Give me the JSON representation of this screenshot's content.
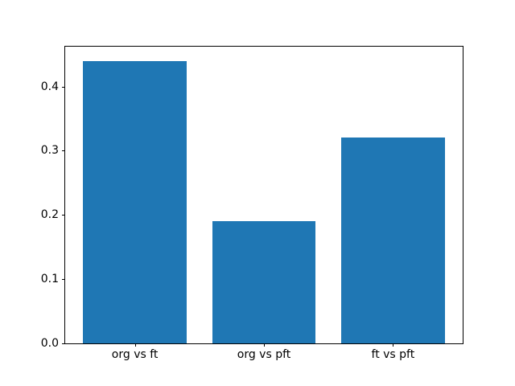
{
  "figure": {
    "background": "#ffffff"
  },
  "chart_data": {
    "type": "bar",
    "title": "",
    "xlabel": "",
    "ylabel": "",
    "categories": [
      "org vs ft",
      "org vs pft",
      "ft vs pft"
    ],
    "values": [
      0.44,
      0.19,
      0.32
    ],
    "bar_color": "#1f77b4",
    "bar_width": 0.8,
    "xlim": [
      -0.54,
      2.54
    ],
    "ylim": [
      0,
      0.462
    ],
    "yticks": [
      0.0,
      0.1,
      0.2,
      0.3,
      0.4
    ],
    "ytick_decimals": 1,
    "grid": false,
    "legend": null,
    "axis_color": "#000000",
    "text_color": "#000000"
  }
}
